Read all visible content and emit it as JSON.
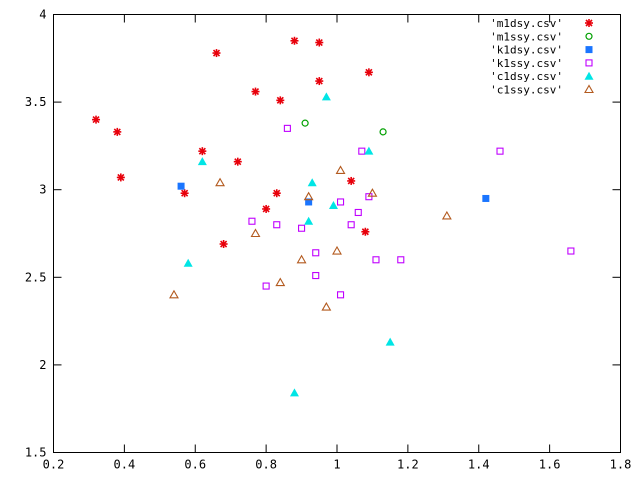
{
  "chart_data": {
    "type": "scatter",
    "title": "",
    "xlabel": "",
    "ylabel": "",
    "xlim": [
      0.2,
      1.8
    ],
    "ylim": [
      1.5,
      4
    ],
    "xticks": [
      "0.2",
      "0.4",
      "0.6",
      "0.8",
      "1",
      "1.2",
      "1.4",
      "1.6",
      "1.8"
    ],
    "yticks": [
      "1.5",
      "2",
      "2.5",
      "3",
      "3.5",
      "4"
    ],
    "grid": false,
    "legend_position": "top-right",
    "series": [
      {
        "name": "'m1dsy.csv'",
        "marker": "star",
        "color": "#e8000b",
        "points": [
          [
            0.32,
            3.4
          ],
          [
            0.38,
            3.33
          ],
          [
            0.39,
            3.07
          ],
          [
            0.57,
            2.98
          ],
          [
            0.62,
            3.22
          ],
          [
            0.66,
            3.78
          ],
          [
            0.68,
            2.69
          ],
          [
            0.72,
            3.16
          ],
          [
            0.77,
            3.56
          ],
          [
            0.8,
            2.89
          ],
          [
            0.83,
            2.98
          ],
          [
            0.84,
            3.51
          ],
          [
            0.88,
            3.85
          ],
          [
            0.95,
            3.84
          ],
          [
            0.95,
            3.62
          ],
          [
            1.04,
            3.05
          ],
          [
            1.08,
            2.76
          ],
          [
            1.09,
            3.67
          ]
        ]
      },
      {
        "name": "'m1ssy.csv'",
        "marker": "circle-open",
        "color": "#00a000",
        "points": [
          [
            0.91,
            3.38
          ],
          [
            1.13,
            3.33
          ]
        ]
      },
      {
        "name": "'k1dsy.csv'",
        "marker": "square-filled",
        "color": "#1a75ff",
        "points": [
          [
            0.56,
            3.02
          ],
          [
            0.92,
            2.93
          ],
          [
            1.42,
            2.95
          ]
        ]
      },
      {
        "name": "'k1ssy.csv'",
        "marker": "square-open",
        "color": "#c000ff",
        "points": [
          [
            0.76,
            2.82
          ],
          [
            0.8,
            2.45
          ],
          [
            0.83,
            2.8
          ],
          [
            0.86,
            3.35
          ],
          [
            0.9,
            2.78
          ],
          [
            0.94,
            2.64
          ],
          [
            0.94,
            2.51
          ],
          [
            1.01,
            2.93
          ],
          [
            1.01,
            2.4
          ],
          [
            1.04,
            2.8
          ],
          [
            1.06,
            2.87
          ],
          [
            1.07,
            3.22
          ],
          [
            1.09,
            2.96
          ],
          [
            1.11,
            2.6
          ],
          [
            1.18,
            2.6
          ],
          [
            1.46,
            3.22
          ],
          [
            1.66,
            2.65
          ]
        ]
      },
      {
        "name": "'c1dsy.csv'",
        "marker": "triangle-filled",
        "color": "#00e5e5",
        "points": [
          [
            0.58,
            2.58
          ],
          [
            0.62,
            3.16
          ],
          [
            0.88,
            1.84
          ],
          [
            0.92,
            2.82
          ],
          [
            0.93,
            3.04
          ],
          [
            0.97,
            3.53
          ],
          [
            0.99,
            2.91
          ],
          [
            1.09,
            3.22
          ],
          [
            1.15,
            2.13
          ]
        ]
      },
      {
        "name": "'c1ssy.csv'",
        "marker": "triangle-open",
        "color": "#b35a1f",
        "points": [
          [
            0.54,
            2.4
          ],
          [
            0.67,
            3.04
          ],
          [
            0.77,
            2.75
          ],
          [
            0.84,
            2.47
          ],
          [
            0.9,
            2.6
          ],
          [
            0.92,
            2.96
          ],
          [
            0.97,
            2.33
          ],
          [
            1.0,
            2.65
          ],
          [
            1.01,
            3.11
          ],
          [
            1.1,
            2.98
          ],
          [
            1.31,
            2.85
          ]
        ]
      }
    ]
  }
}
